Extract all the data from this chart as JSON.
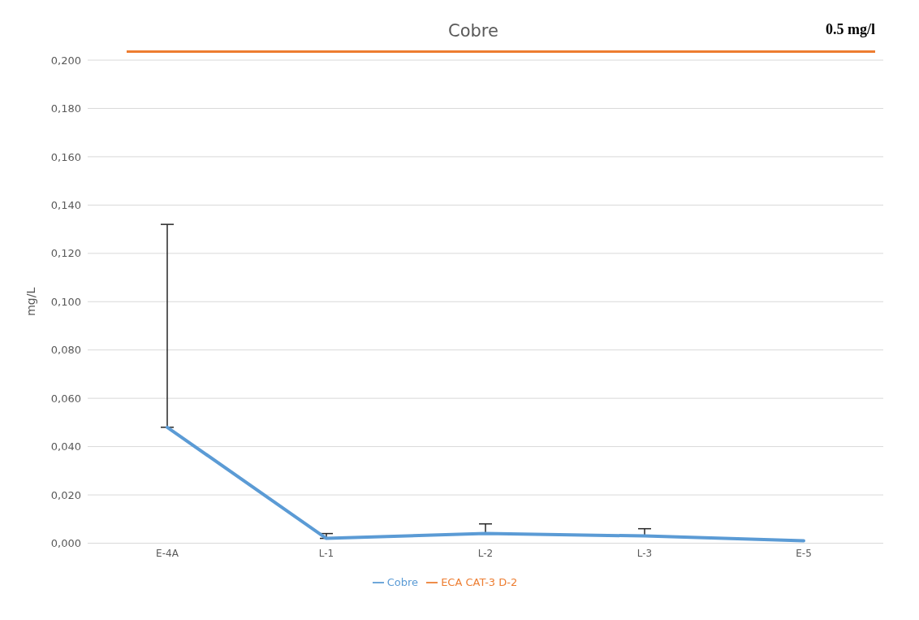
{
  "chart_data": {
    "type": "line",
    "title": "Cobre",
    "ylabel": "mg/L",
    "annotations": [
      "0.5 mg/l"
    ],
    "categories": [
      "E-4A",
      "L-1",
      "L-2",
      "L-3",
      "E-5"
    ],
    "series": [
      {
        "name": "Cobre",
        "color": "#5b9bd5",
        "values": [
          0.048,
          0.002,
          0.004,
          0.003,
          0.001
        ],
        "errors": [
          [
            0.048,
            0.132
          ],
          [
            0.002,
            0.004
          ],
          [
            0.004,
            0.008
          ],
          [
            0.003,
            0.006
          ],
          null
        ]
      },
      {
        "name": "ECA CAT-3 D-2",
        "color": "#ed7d31",
        "values": [
          null,
          null,
          null,
          null,
          null
        ]
      }
    ],
    "ylim": [
      0,
      0.2
    ],
    "yticks": [
      {
        "value": 0,
        "label": "0,000"
      },
      {
        "value": 0.02,
        "label": "0,020"
      },
      {
        "value": 0.04,
        "label": "0,040"
      },
      {
        "value": 0.06,
        "label": "0,060"
      },
      {
        "value": 0.08,
        "label": "0,080"
      },
      {
        "value": 0.1,
        "label": "0,100"
      },
      {
        "value": 0.12,
        "label": "0,120"
      },
      {
        "value": 0.14,
        "label": "0,140"
      },
      {
        "value": 0.16,
        "label": "0,160"
      },
      {
        "value": 0.18,
        "label": "0,180"
      },
      {
        "value": 0.2,
        "label": "0,200"
      }
    ],
    "grid": "y",
    "legend": "bottom",
    "marker": "none",
    "line_style": "solid"
  }
}
